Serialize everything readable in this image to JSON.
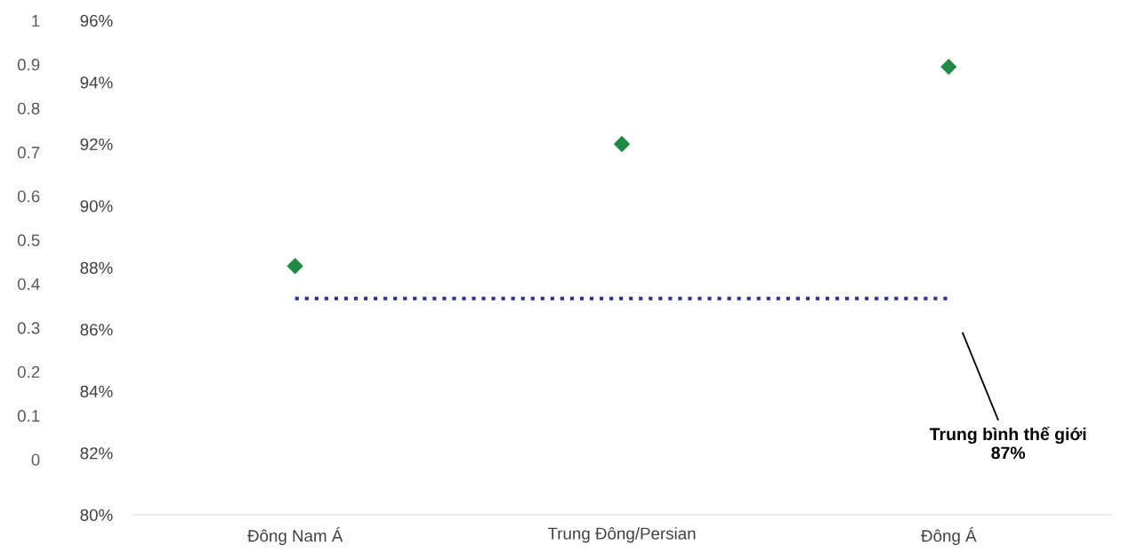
{
  "chart_data": {
    "type": "scatter",
    "categories": [
      "Đông Nam Á",
      "Trung Đông/Persian",
      "Đông Á"
    ],
    "series": [
      {
        "color": "#1e8a44",
        "values": [
          88.05,
          92.0,
          94.5
        ]
      }
    ],
    "marker": "diamond",
    "ylim": [
      80,
      96
    ],
    "yticks": [
      {
        "value": 80,
        "label": "80%"
      },
      {
        "value": 82,
        "label": "82%"
      },
      {
        "value": 84,
        "label": "84%"
      },
      {
        "value": 86,
        "label": "86%"
      },
      {
        "value": 88,
        "label": "88%"
      },
      {
        "value": 90,
        "label": "90%"
      },
      {
        "value": 92,
        "label": "92%"
      },
      {
        "value": 94,
        "label": "94%"
      },
      {
        "value": 96,
        "label": "96%"
      }
    ],
    "y2lim": [
      -0.126,
      1
    ],
    "y2ticks": [
      0,
      0.1,
      0.2,
      0.3,
      0.4,
      0.5,
      0.6,
      0.7,
      0.8,
      0.9,
      1
    ],
    "ref_lines": [
      {
        "axis": "y",
        "value": 87,
        "color": "#2e3192",
        "line_style": "dotted"
      }
    ],
    "annotations": [
      "Trung bình thế giới\n87%"
    ],
    "grid": false,
    "legend": false
  }
}
